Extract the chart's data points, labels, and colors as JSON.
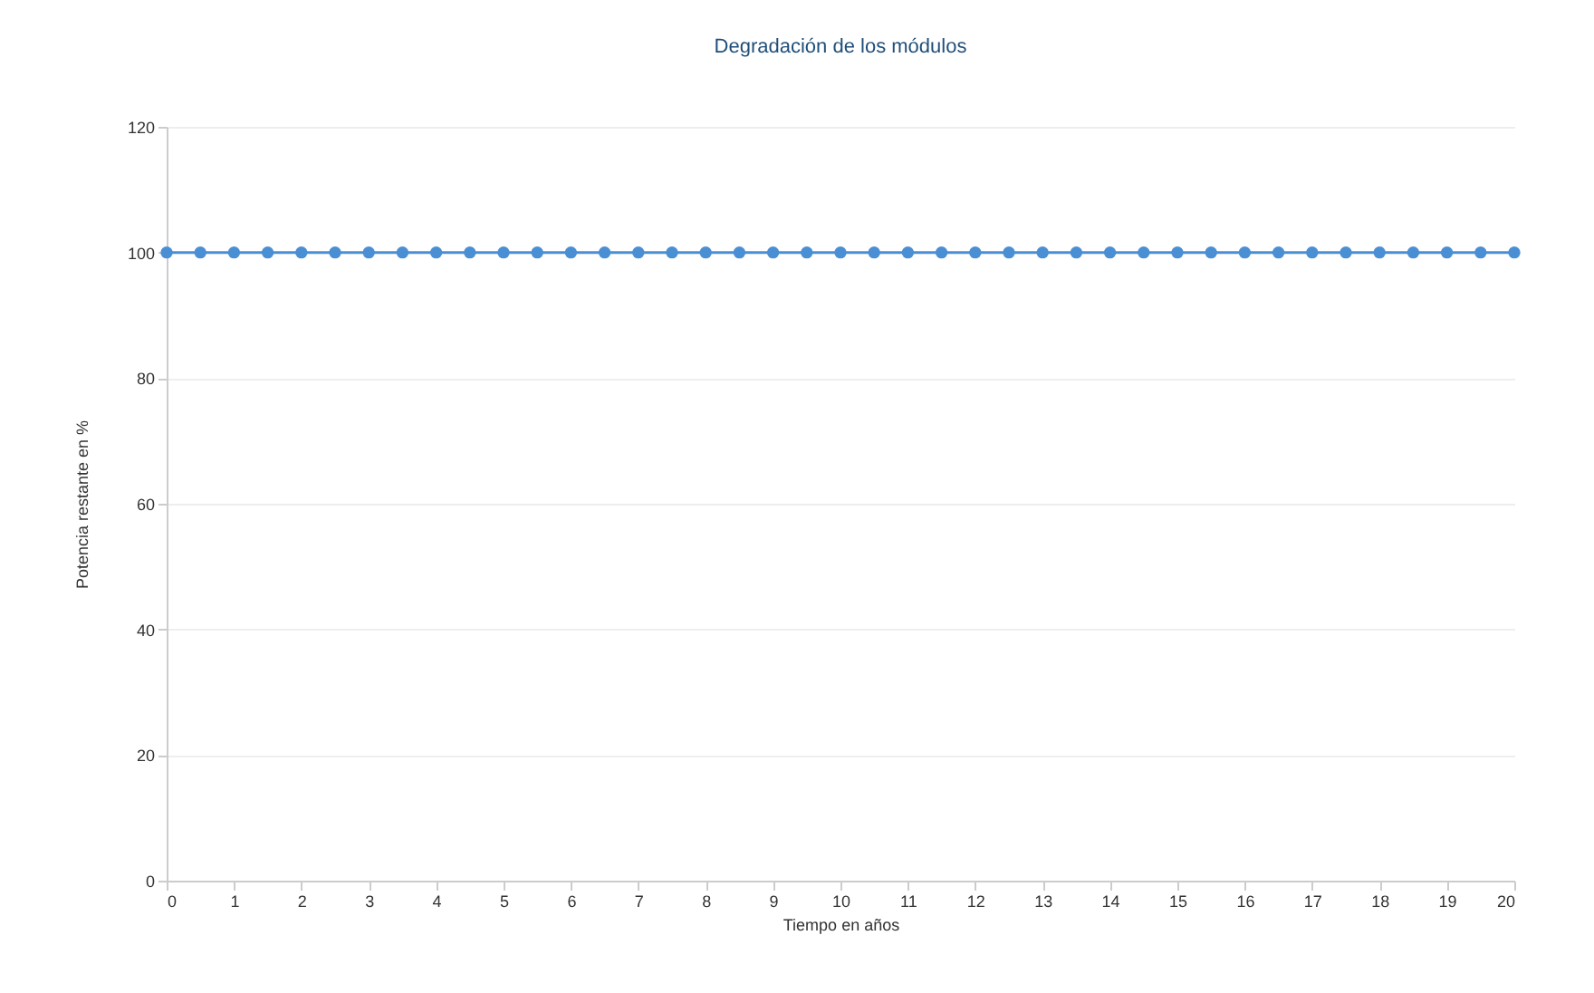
{
  "chart_data": {
    "type": "line",
    "title": "Degradación de los módulos",
    "xlabel": "Tiempo en años",
    "ylabel": "Potencia restante en %",
    "x": [
      0,
      0.5,
      1,
      1.5,
      2,
      2.5,
      3,
      3.5,
      4,
      4.5,
      5,
      5.5,
      6,
      6.5,
      7,
      7.5,
      8,
      8.5,
      9,
      9.5,
      10,
      10.5,
      11,
      11.5,
      12,
      12.5,
      13,
      13.5,
      14,
      14.5,
      15,
      15.5,
      16,
      16.5,
      17,
      17.5,
      18,
      18.5,
      19,
      19.5,
      20
    ],
    "series": [
      {
        "color": "#4a8fd4",
        "values": [
          100,
          100,
          100,
          100,
          100,
          100,
          100,
          100,
          100,
          100,
          100,
          100,
          100,
          100,
          100,
          100,
          100,
          100,
          100,
          100,
          100,
          100,
          100,
          100,
          100,
          100,
          100,
          100,
          100,
          100,
          100,
          100,
          100,
          100,
          100,
          100,
          100,
          100,
          100,
          100,
          100
        ]
      }
    ],
    "xlim": [
      0,
      20
    ],
    "xticks": [
      0,
      1,
      2,
      3,
      4,
      5,
      6,
      7,
      8,
      9,
      10,
      11,
      12,
      13,
      14,
      15,
      16,
      17,
      18,
      19,
      20
    ],
    "ylim": [
      0,
      120
    ],
    "yticks": [
      0,
      20,
      40,
      60,
      80,
      100,
      120
    ],
    "grid": "y",
    "marker": "circle",
    "line_style": "solid"
  }
}
